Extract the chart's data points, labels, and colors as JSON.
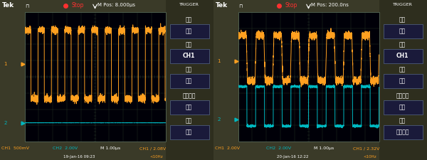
{
  "bg_color": "#2a2a1a",
  "screen_bg": "#000008",
  "grid_color": "#1e3a2a",
  "orange_color": "#FFA020",
  "cyan_color": "#00B8C0",
  "white_color": "#DDDDCC",
  "red_color": "#FF3030",
  "panel_bg": "#3a3a28",
  "sidebar_bg": "#2e2e1e",
  "box_bg": "#1a1a3a",
  "panel_left": {
    "m_pos": "M Pos: 8.000μs",
    "ch1_label": "CH1  500mV",
    "ch2_label": "CH2  2.00V",
    "m_label": "M 1.00μs",
    "ch1_trig": "CH1 / 2.08V",
    "date_label": "19-Jan-16 09:23",
    "freq_label": "<10Hz",
    "sidebar": [
      "类型",
      "边沿",
      "信源",
      "CH1",
      "斜率",
      "上升",
      "触发方式",
      "自动",
      "耦合",
      "直流"
    ]
  },
  "panel_right": {
    "m_pos": "M Pos: 200.0ns",
    "ch1_label": "CH1  2.00V",
    "ch2_label": "CH2  2.00V",
    "m_label": "M 1.00μs",
    "ch1_trig": "CH1 / 2.32V",
    "date_label": "20-Jan-16 12:22",
    "freq_label": "<10Hz",
    "sidebar": [
      "类型",
      "边沿",
      "信源",
      "CH1",
      "斜率",
      "上升",
      "触发方式",
      "自动",
      "耦合",
      "噪音抑制"
    ]
  }
}
